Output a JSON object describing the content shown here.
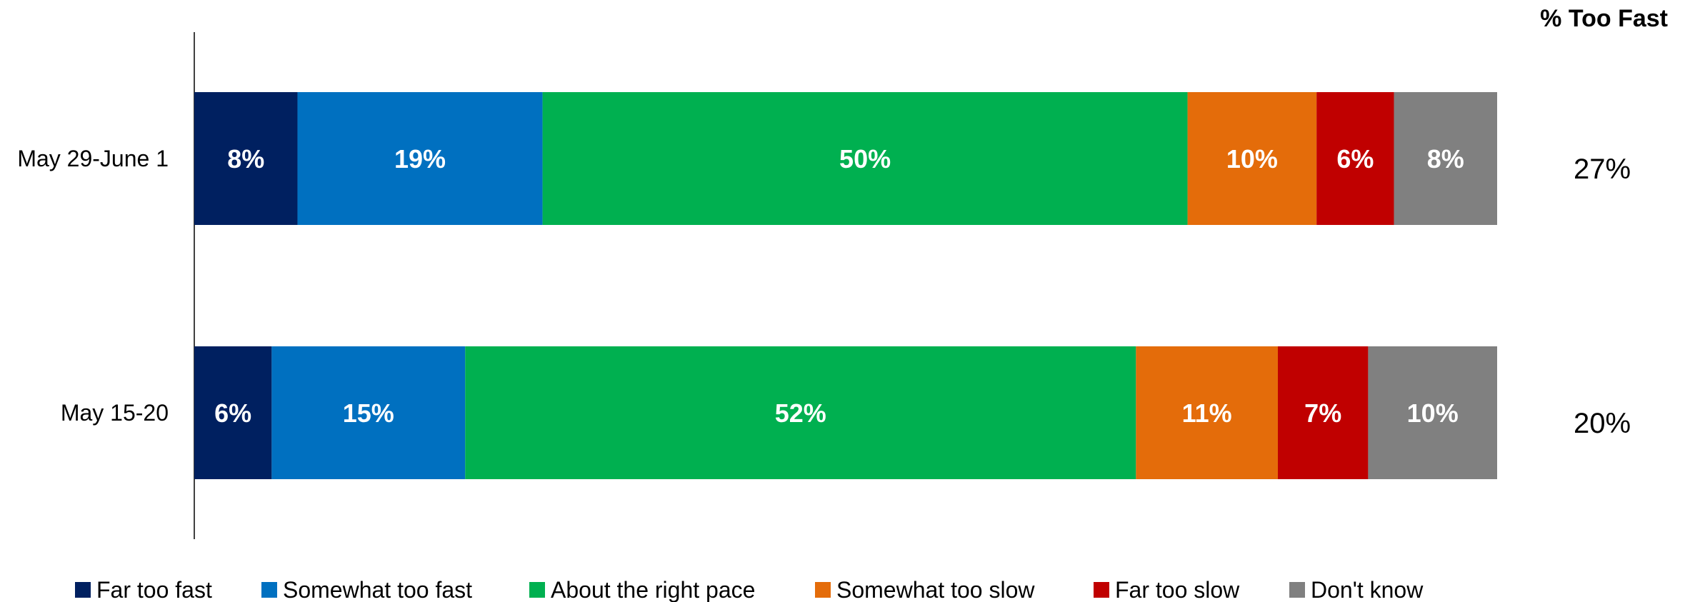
{
  "chart_data": {
    "type": "bar",
    "orientation": "horizontal",
    "stacked": true,
    "categories": [
      "May 29-June 1",
      "May 15-20"
    ],
    "series": [
      {
        "name": "Far too fast",
        "color": "#002060",
        "values": [
          8,
          6
        ],
        "labels": [
          "8%",
          "6%"
        ]
      },
      {
        "name": "Somewhat too fast",
        "color": "#0070C0",
        "values": [
          19,
          15
        ],
        "labels": [
          "19%",
          "15%"
        ]
      },
      {
        "name": "About the right pace",
        "color": "#00B050",
        "values": [
          50,
          52
        ],
        "labels": [
          "50%",
          "52%"
        ]
      },
      {
        "name": "Somewhat too slow",
        "color": "#E46C0A",
        "values": [
          10,
          11
        ],
        "labels": [
          "10%",
          "11%"
        ]
      },
      {
        "name": "Far too slow",
        "color": "#C00000",
        "values": [
          6,
          7
        ],
        "labels": [
          "6%",
          "7%"
        ]
      },
      {
        "name": "Don't know",
        "color": "#808080",
        "values": [
          8,
          10
        ],
        "labels": [
          "8%",
          "10%"
        ]
      }
    ],
    "side_column": {
      "header": "% Too Fast",
      "values": [
        "27%",
        "20%"
      ]
    },
    "legend_position": "bottom",
    "grid": false
  }
}
